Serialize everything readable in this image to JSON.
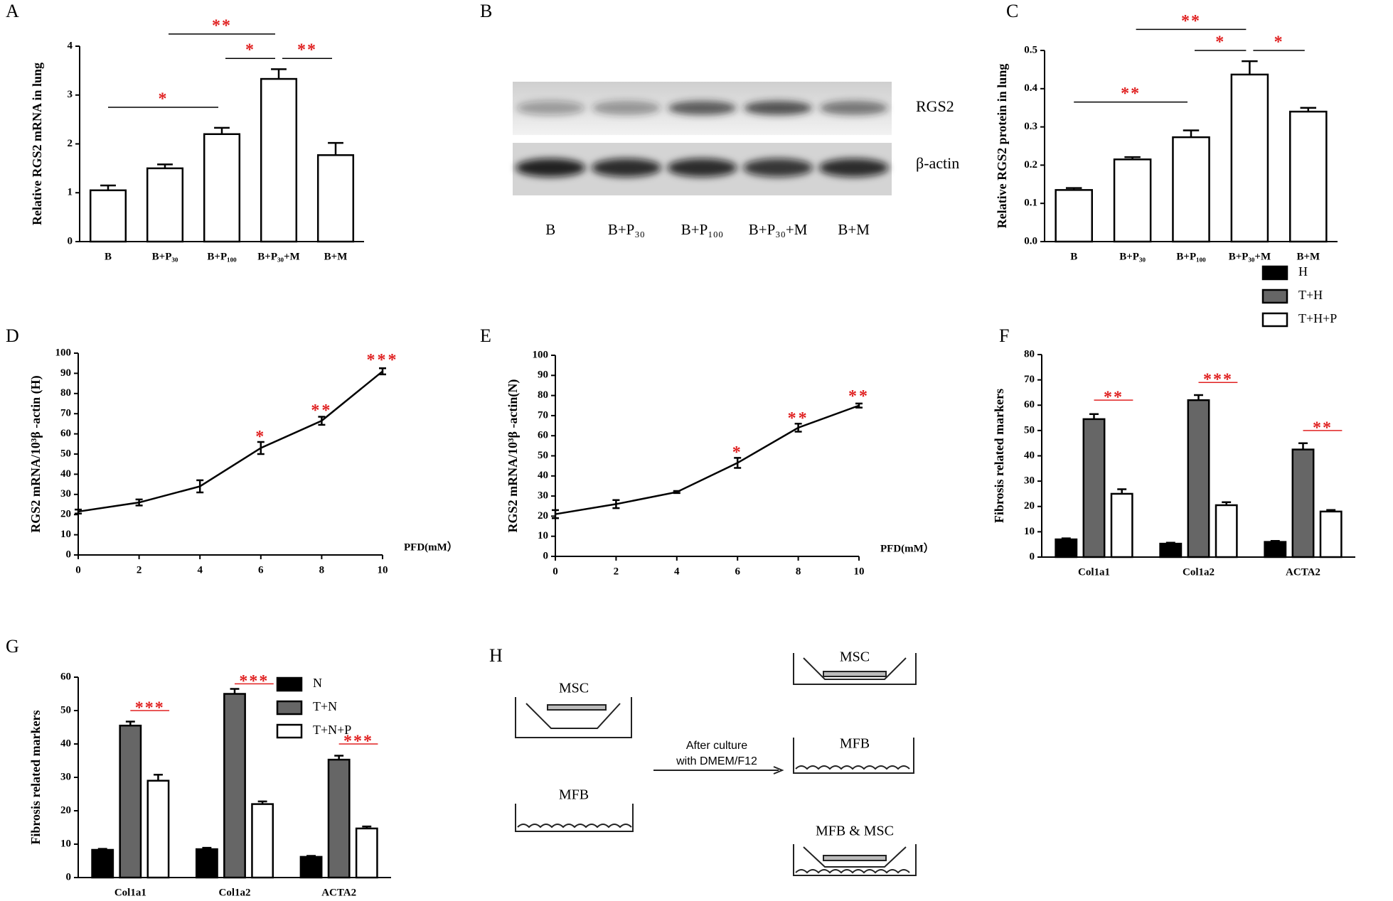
{
  "chart_data": [
    {
      "type": "bar",
      "panel": "A",
      "ylabel": "Relative RGS2 mRNA in lung",
      "categories": [
        "B",
        "B+P₃₀",
        "B+P₁₀₀",
        "B+P₃₀+M",
        "B+M"
      ],
      "values": [
        1.05,
        1.5,
        2.2,
        3.33,
        1.77
      ],
      "errors": [
        0.1,
        0.08,
        0.13,
        0.2,
        0.25
      ],
      "color": "#ffffff",
      "ylim": [
        0,
        4
      ],
      "yticks": [
        0,
        1,
        2,
        3,
        4
      ],
      "annotations": [
        "*",
        "**",
        "*",
        "**"
      ]
    },
    {
      "type": "bar",
      "panel": "C",
      "ylabel": "Relative RGS2 protein in lung",
      "categories": [
        "B",
        "B+P₃₀",
        "B+P₁₀₀",
        "B+P₃₀+M",
        "B+M"
      ],
      "values": [
        0.135,
        0.215,
        0.273,
        0.437,
        0.34
      ],
      "errors": [
        0.005,
        0.006,
        0.018,
        0.035,
        0.01
      ],
      "color": "#ffffff",
      "ylim": [
        0,
        0.5
      ],
      "yticks": [
        {
          "value": 0,
          "label": "0.0"
        },
        0.1,
        0.2,
        0.3,
        0.4,
        0.5
      ],
      "annotations": [
        "**",
        "**",
        "*",
        "*"
      ]
    },
    {
      "type": "line",
      "panel": "D",
      "ylabel": "RGS2 mRNA/10³β -actin (H)",
      "xlabel": "PFD(mM）",
      "x": [
        0,
        2,
        4,
        6,
        8,
        10
      ],
      "values": [
        21.5,
        26,
        34,
        53,
        66.5,
        91
      ],
      "errors": [
        1,
        1.5,
        3,
        3,
        2,
        1.5
      ],
      "color": "#000000",
      "xlim": [
        0,
        10
      ],
      "xticks": [
        0,
        2,
        4,
        6,
        8,
        10
      ],
      "ylim": [
        0,
        100
      ],
      "yticks": [
        0,
        10,
        20,
        30,
        40,
        50,
        60,
        70,
        80,
        90,
        100
      ],
      "annotations": [
        "*",
        "**",
        "***"
      ]
    },
    {
      "type": "line",
      "panel": "E",
      "ylabel": "RGS2 mRNA/10³β -actin(N)",
      "xlabel": "PFD(mM）",
      "x": [
        0,
        2,
        4,
        6,
        8,
        10
      ],
      "values": [
        21,
        26,
        32,
        46.5,
        64,
        75
      ],
      "errors": [
        2,
        2,
        0.5,
        2.5,
        2,
        1
      ],
      "color": "#000000",
      "xlim": [
        0,
        10
      ],
      "xticks": [
        0,
        2,
        4,
        6,
        8,
        10
      ],
      "ylim": [
        0,
        100
      ],
      "yticks": [
        0,
        10,
        20,
        30,
        40,
        50,
        60,
        70,
        80,
        90,
        100
      ],
      "annotations": [
        "*",
        "**",
        "**"
      ]
    },
    {
      "type": "bar",
      "panel": "F",
      "ylabel": "Fibrosis related markers",
      "categories": [
        "Col1a1",
        "Col1a2",
        "ACTA2"
      ],
      "series": [
        {
          "name": "H",
          "color": "#000000",
          "values": [
            7,
            5.3,
            6
          ],
          "errors": [
            0.4,
            0.4,
            0.4
          ]
        },
        {
          "name": "T+H",
          "color": "#666666",
          "values": [
            54.5,
            62,
            42.5
          ],
          "errors": [
            2,
            2,
            2.5
          ]
        },
        {
          "name": "T+H+P",
          "color": "#ffffff",
          "values": [
            25,
            20.5,
            18
          ],
          "errors": [
            1.8,
            1.2,
            0.6
          ]
        }
      ],
      "ylim": [
        0,
        80
      ],
      "yticks": [
        0,
        10,
        20,
        30,
        40,
        50,
        60,
        70,
        80
      ],
      "annotations": [
        "**",
        "***",
        "**"
      ]
    },
    {
      "type": "bar",
      "panel": "G",
      "ylabel": "Fibrosis related markers",
      "categories": [
        "Col1a1",
        "Col1a2",
        "ACTA2"
      ],
      "series": [
        {
          "name": "N",
          "color": "#000000",
          "values": [
            8.3,
            8.5,
            6.2
          ],
          "errors": [
            0.3,
            0.4,
            0.3
          ]
        },
        {
          "name": "T+N",
          "color": "#666666",
          "values": [
            45.5,
            55,
            35.3
          ],
          "errors": [
            1.2,
            1.5,
            1.2
          ]
        },
        {
          "name": "T+N+P",
          "color": "#ffffff",
          "values": [
            29,
            22,
            14.7
          ],
          "errors": [
            1.8,
            0.8,
            0.6
          ]
        }
      ],
      "ylim": [
        0,
        60
      ],
      "yticks": [
        0,
        10,
        20,
        30,
        40,
        50,
        60
      ],
      "annotations": [
        "***",
        "***",
        "***"
      ]
    }
  ],
  "blot": {
    "panel": "B",
    "rows": [
      "RGS2",
      "β-actin"
    ],
    "lanes": [
      "B",
      "B+P₃₀",
      "B+P₁₀₀",
      "B+P₃₀+M",
      "B+M"
    ]
  },
  "diagram": {
    "panel": "H",
    "left": [
      "MSC",
      "MFB"
    ],
    "arrow": [
      "After culture",
      "with DMEM/F12"
    ],
    "right": [
      "MSC",
      "MFB",
      "MFB & MSC"
    ]
  }
}
